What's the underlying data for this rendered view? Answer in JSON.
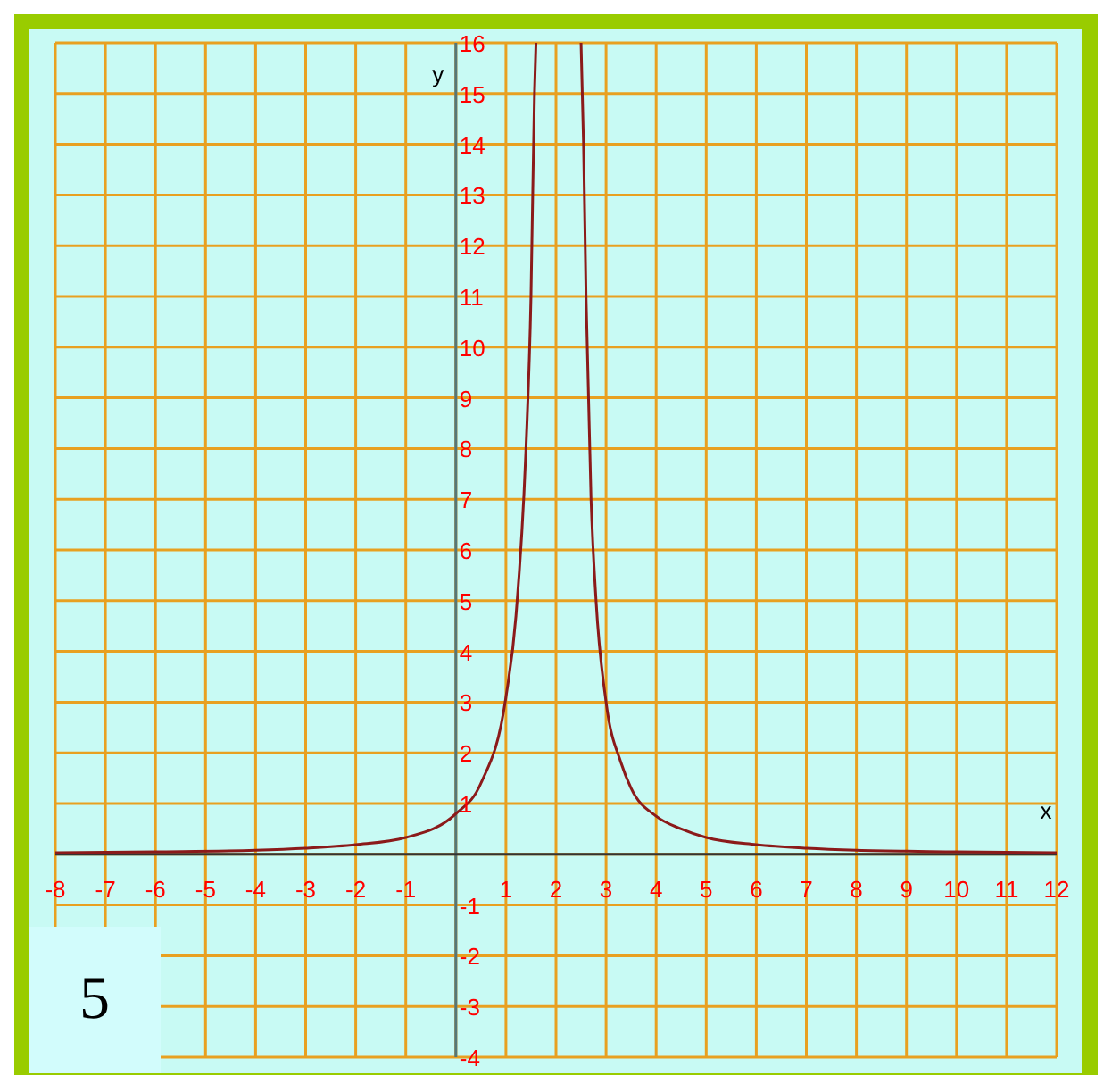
{
  "chart_data": {
    "type": "line",
    "xlabel": "x",
    "ylabel": "y",
    "annotations": [
      "5"
    ],
    "x": [
      -8,
      -6,
      -4,
      -3,
      -2,
      -1,
      0,
      0.5,
      1,
      1.2,
      1.4,
      1.5,
      1.57,
      1.6,
      2,
      2.5,
      2.55,
      2.6,
      2.7,
      2.8,
      3,
      3.3,
      3.5,
      4,
      4.5,
      5,
      6,
      7,
      8,
      10,
      12
    ],
    "series": [
      {
        "color": "#8b1a1a",
        "values": [
          0.03,
          0.05,
          0.08,
          0.12,
          0.19,
          0.33,
          0.8,
          1.4,
          3.1,
          4.7,
          8,
          11,
          15,
          16,
          null,
          16,
          14,
          11,
          7,
          5,
          3,
          1.8,
          1.3,
          0.75,
          0.5,
          0.33,
          0.19,
          0.12,
          0.08,
          0.05,
          0.03
        ]
      }
    ],
    "xlim": [
      -8,
      12
    ],
    "xticks": [
      -8,
      -7,
      -6,
      -5,
      -4,
      -3,
      -2,
      -1,
      {
        "value": 0,
        "label": null
      },
      1,
      2,
      3,
      4,
      5,
      6,
      7,
      8,
      9,
      10,
      11,
      12
    ],
    "ylim": [
      -4,
      16
    ],
    "yticks": [
      -4,
      -3,
      -2,
      -1,
      {
        "value": 0,
        "label": null
      },
      1,
      2,
      3,
      4,
      5,
      6,
      7,
      8,
      9,
      10,
      11,
      12,
      13,
      14,
      15,
      16
    ],
    "grid": true,
    "marker": "none",
    "line_style": "solid"
  }
}
